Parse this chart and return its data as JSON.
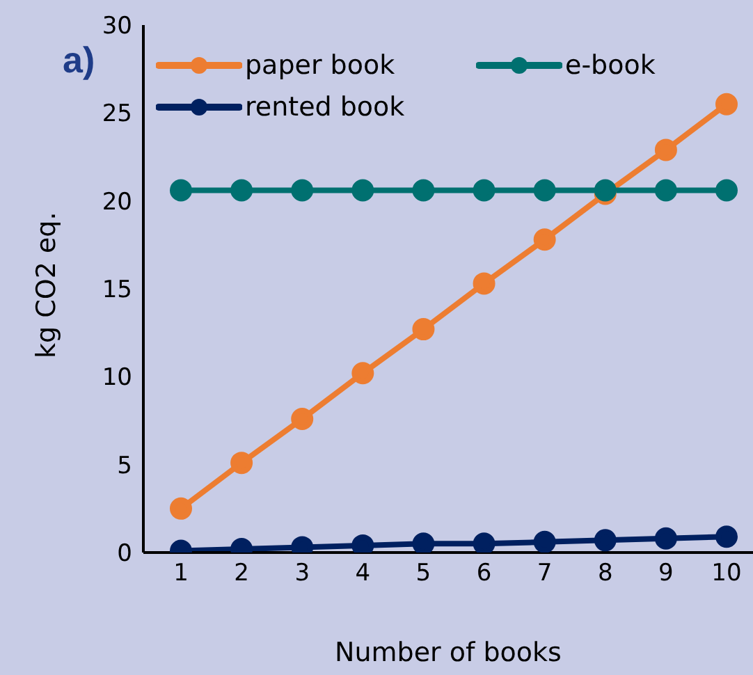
{
  "chart_data": {
    "type": "line",
    "xlabel": "Number of books",
    "ylabel": "kg CO2 eq.",
    "annotations": [
      "a)"
    ],
    "categories": [
      "1",
      "2",
      "3",
      "4",
      "5",
      "6",
      "7",
      "8",
      "9",
      "10"
    ],
    "series": [
      {
        "name": "paper book",
        "color": "#ed7d31",
        "values": [
          2.5,
          5.1,
          7.6,
          10.2,
          12.7,
          15.3,
          17.8,
          20.4,
          22.9,
          25.5
        ]
      },
      {
        "name": "e-book",
        "color": "#007070",
        "values": [
          20.6,
          20.6,
          20.6,
          20.6,
          20.6,
          20.6,
          20.6,
          20.6,
          20.6,
          20.6
        ]
      },
      {
        "name": "rented book",
        "color": "#002060",
        "values": [
          0.1,
          0.2,
          0.3,
          0.4,
          0.5,
          0.5,
          0.6,
          0.7,
          0.8,
          0.9
        ]
      }
    ],
    "ylim": [
      0,
      30
    ],
    "yticks": [
      0,
      5,
      10,
      15,
      20,
      25,
      30
    ],
    "grid": false,
    "legend": "top left",
    "marker": "circle",
    "line_style": "solid"
  }
}
